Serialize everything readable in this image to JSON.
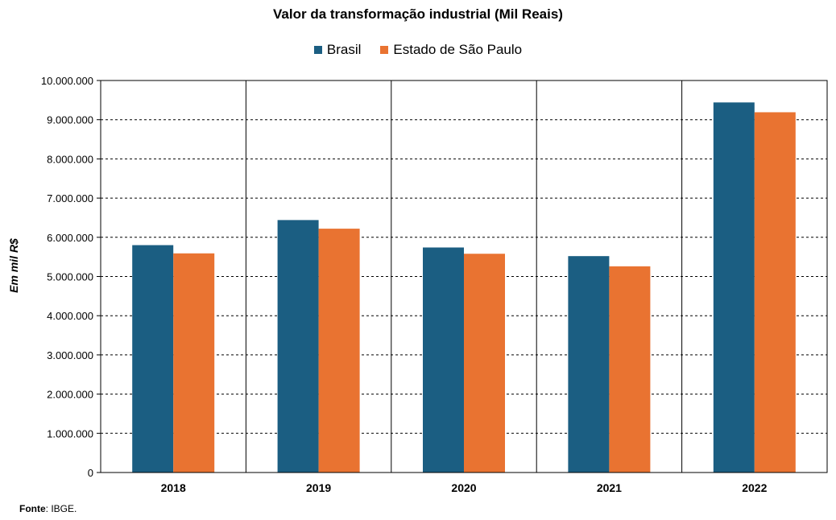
{
  "chart_data": {
    "type": "bar",
    "title": "Valor da transformação industrial (Mil Reais)",
    "ylabel": "Em mil R$",
    "xlabel": "",
    "categories": [
      "2018",
      "2019",
      "2020",
      "2021",
      "2022"
    ],
    "series": [
      {
        "name": "Brasil",
        "color": "#1b5e82",
        "values": [
          5800000,
          6440000,
          5740000,
          5520000,
          9440000
        ]
      },
      {
        "name": "Estado de São Paulo",
        "color": "#e97331",
        "values": [
          5590000,
          6220000,
          5580000,
          5260000,
          9190000
        ]
      }
    ],
    "ylim": [
      0,
      10000000
    ],
    "yticks": [
      0,
      1000000,
      2000000,
      3000000,
      4000000,
      5000000,
      6000000,
      7000000,
      8000000,
      9000000,
      10000000
    ],
    "ytick_labels": [
      "0",
      "1.000.000",
      "2.000.000",
      "3.000.000",
      "4.000.000",
      "5.000.000",
      "6.000.000",
      "7.000.000",
      "8.000.000",
      "9.000.000",
      "10.000.000"
    ],
    "grid": true,
    "legend_position": "top-center"
  },
  "footnote": {
    "label": "Fonte",
    "text": ": IBGE."
  }
}
